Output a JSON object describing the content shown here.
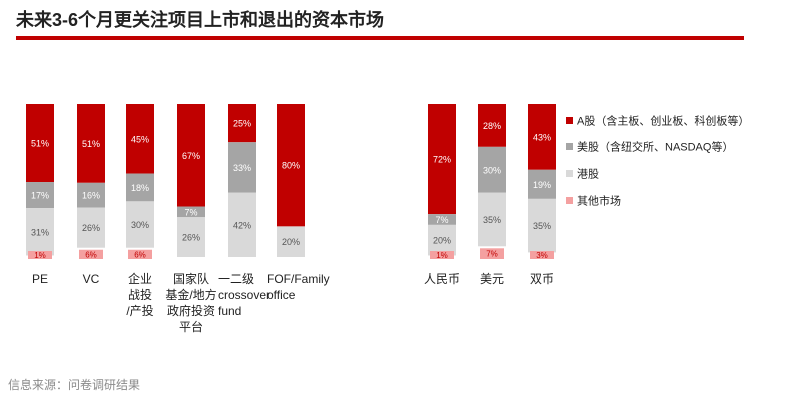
{
  "page_title": "未来3-6个月更关注项目上市和退出的资本市场",
  "source_text": "信息来源：问卷调研结果",
  "colors": {
    "accent": "#c00000",
    "a_share": "#c00000",
    "us": "#a5a5a5",
    "hk": "#d9d9d9",
    "other": "#f4a0a0"
  },
  "chart_data": {
    "type": "bar",
    "stacked": true,
    "normalized_percent": true,
    "title": "",
    "legend": {
      "position": "right",
      "entries": [
        "A股（含主板、创业板、科创板等）",
        "美股（含纽交所、NASDAQ等）",
        "港股",
        "其他市场"
      ]
    },
    "groups": [
      {
        "categories": [
          [
            "PE"
          ],
          [
            "VC"
          ],
          [
            "企业",
            "战投",
            "/产投"
          ],
          [
            "国家队",
            "基金/地方",
            "政府投资",
            "平台"
          ],
          [
            "一二级",
            "crossover",
            "fund"
          ],
          [
            "FOF/Family",
            "office"
          ]
        ],
        "series": [
          {
            "name": "A股（含主板、创业板、科创板等）",
            "values": [
              51,
              51,
              45,
              67,
              25,
              80
            ],
            "labels": [
              "51%",
              "51%",
              "45%",
              "67%",
              "25%",
              "80%"
            ]
          },
          {
            "name": "美股（含纽交所、NASDAQ等）",
            "values": [
              17,
              16,
              18,
              7,
              33,
              0
            ],
            "labels": [
              "17%",
              "16%",
              "18%",
              "7%",
              "33%",
              ""
            ]
          },
          {
            "name": "港股",
            "values": [
              31,
              26,
              30,
              26,
              42,
              20
            ],
            "labels": [
              "31%",
              "26%",
              "30%",
              "26%",
              "42%",
              "20%"
            ]
          },
          {
            "name": "其他市场",
            "values": [
              1,
              6,
              6,
              0,
              0,
              0
            ],
            "labels": [
              "1%",
              "6%",
              "6%",
              "",
              "",
              ""
            ]
          }
        ]
      },
      {
        "categories": [
          [
            "人民币"
          ],
          [
            "美元"
          ],
          [
            "双币"
          ]
        ],
        "series": [
          {
            "name": "A股（含主板、创业板、科创板等）",
            "values": [
              72,
              28,
              43
            ],
            "labels": [
              "72%",
              "28%",
              "43%"
            ]
          },
          {
            "name": "美股（含纽交所、NASDAQ等）",
            "values": [
              7,
              30,
              19
            ],
            "labels": [
              "7%",
              "30%",
              "19%"
            ]
          },
          {
            "name": "港股",
            "values": [
              20,
              35,
              35
            ],
            "labels": [
              "20%",
              "35%",
              "35%"
            ]
          },
          {
            "name": "其他市场",
            "values": [
              1,
              7,
              3
            ],
            "labels": [
              "1%",
              "7%",
              "3%"
            ]
          }
        ]
      }
    ]
  }
}
